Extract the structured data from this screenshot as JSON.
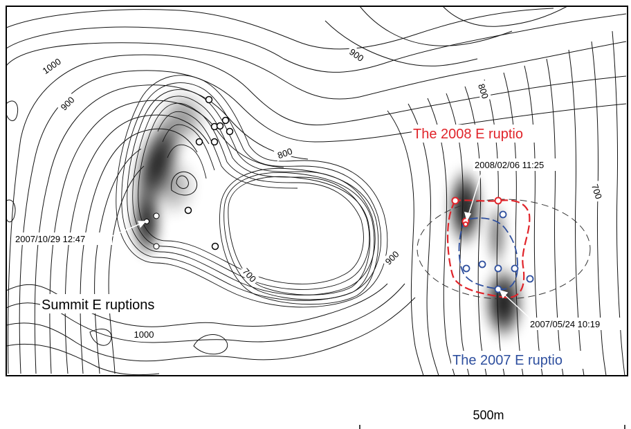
{
  "map": {
    "contour_labels": [
      "1000",
      "900",
      "900",
      "800",
      "800",
      "700",
      "700",
      "900",
      "1000"
    ],
    "area_labels": {
      "summit": "Summit E ruptions",
      "eruption_2008": "The 2008 E ruptio",
      "eruption_2007": "The 2007 E ruptio"
    },
    "event_labels": {
      "e2007_10_29": "2007/10/29 12:47",
      "e2008_02_06": "2008/02/06 11:25",
      "e2007_05_24": "2007/05/24 10:19"
    },
    "scale": {
      "label": "500m"
    },
    "colors": {
      "eruption_2008": "#e0242a",
      "eruption_2007": "#2e4f9e",
      "contour": "#111111",
      "shading": "#000000"
    }
  }
}
